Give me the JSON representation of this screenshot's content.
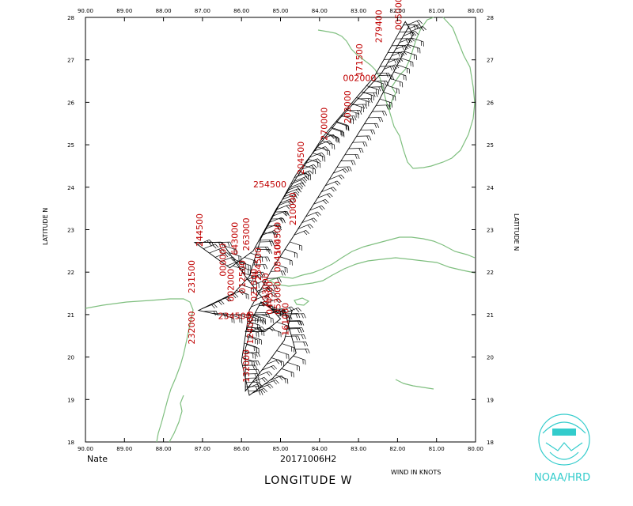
{
  "map": {
    "storm_name": "Nate",
    "date_label": "20171006H2",
    "x_axis_title": "LONGITUDE   W",
    "y_axis_title_left": "LATITUDE   N",
    "y_axis_title_right": "LATITUDE   N",
    "wind_units_label": "WIND IN KNOTS",
    "lon_range": [
      -90,
      -80
    ],
    "lat_range": [
      18,
      28
    ],
    "lon_ticks": [
      "90.00",
      "89.00",
      "88.00",
      "87.00",
      "86.00",
      "85.00",
      "84.00",
      "83.00",
      "82.00",
      "81.00",
      "80.00"
    ],
    "lat_ticks": [
      "18",
      "19",
      "20",
      "21",
      "22",
      "23",
      "24",
      "25",
      "26",
      "27",
      "28"
    ],
    "coast_color": "#7fbf7f",
    "track_color": "#000000",
    "label_color": "#c00000",
    "flight_track": [
      [
        -81.7,
        27.8
      ],
      [
        -82.4,
        26.7
      ],
      [
        -83.5,
        25.6
      ],
      [
        -84.6,
        24.3
      ],
      [
        -85.5,
        22.8
      ],
      [
        -85.8,
        21.9
      ],
      [
        -86.2,
        21.5
      ],
      [
        -87.1,
        21.1
      ],
      [
        -86.6,
        21.0
      ],
      [
        -85.4,
        21.0
      ],
      [
        -84.9,
        21.1
      ],
      [
        -84.6,
        20.1
      ],
      [
        -85.2,
        19.5
      ],
      [
        -85.8,
        19.1
      ],
      [
        -86.0,
        19.9
      ],
      [
        -85.8,
        21.1
      ],
      [
        -85.5,
        21.6
      ],
      [
        -85.2,
        22.1
      ],
      [
        -84.7,
        22.8
      ],
      [
        -83.6,
        24.4
      ],
      [
        -82.5,
        26.0
      ],
      [
        -81.6,
        27.6
      ],
      [
        -81.8,
        27.9
      ],
      [
        -82.6,
        26.6
      ],
      [
        -83.9,
        25.2
      ],
      [
        -85.1,
        23.5
      ],
      [
        -85.7,
        22.5
      ],
      [
        -86.3,
        22.1
      ],
      [
        -87.2,
        22.7
      ],
      [
        -86.5,
        22.7
      ],
      [
        -85.9,
        21.9
      ],
      [
        -85.3,
        21.2
      ],
      [
        -85.0,
        20.9
      ],
      [
        -85.4,
        20.6
      ],
      [
        -85.9,
        20.6
      ],
      [
        -85.5,
        21.3
      ],
      [
        -85.0,
        21.0
      ],
      [
        -84.7,
        21.1
      ],
      [
        -84.9,
        20.4
      ],
      [
        -85.3,
        19.9
      ],
      [
        -85.9,
        19.2
      ],
      [
        -85.9,
        20.2
      ],
      [
        -85.7,
        20.8
      ]
    ],
    "obs_labels": [
      {
        "text": "244500",
        "lon": -87.0,
        "lat": 22.6,
        "rot": -90
      },
      {
        "text": "231500",
        "lon": -87.2,
        "lat": 21.5,
        "rot": -90
      },
      {
        "text": "234500",
        "lon": -86.6,
        "lat": 20.9,
        "rot": 0
      },
      {
        "text": "232000",
        "lon": -87.2,
        "lat": 20.3,
        "rot": -90
      },
      {
        "text": "000000",
        "lon": -86.4,
        "lat": 21.9,
        "rot": -90
      },
      {
        "text": "643000",
        "lon": -86.1,
        "lat": 22.4,
        "rot": -90
      },
      {
        "text": "263000",
        "lon": -85.8,
        "lat": 22.5,
        "rot": -90
      },
      {
        "text": "254500",
        "lon": -85.5,
        "lat": 21.8,
        "rot": -90
      },
      {
        "text": "002000",
        "lon": -86.2,
        "lat": 21.3,
        "rot": -90
      },
      {
        "text": "012500",
        "lon": -85.9,
        "lat": 21.5,
        "rot": -90
      },
      {
        "text": "021500",
        "lon": -85.6,
        "lat": 21.3,
        "rot": -90
      },
      {
        "text": "033000",
        "lon": -85.3,
        "lat": 21.2,
        "rot": -90
      },
      {
        "text": "044500",
        "lon": -85.2,
        "lat": 21.0,
        "rot": -90
      },
      {
        "text": "053000",
        "lon": -85.0,
        "lat": 21.0,
        "rot": -90
      },
      {
        "text": "084500",
        "lon": -85.0,
        "lat": 22.0,
        "rot": -90
      },
      {
        "text": "104500",
        "lon": -85.0,
        "lat": 22.4,
        "rot": -90
      },
      {
        "text": "124000",
        "lon": -85.7,
        "lat": 20.3,
        "rot": -90
      },
      {
        "text": "132000",
        "lon": -85.8,
        "lat": 19.4,
        "rot": -90
      },
      {
        "text": "161000",
        "lon": -84.8,
        "lat": 20.5,
        "rot": -90
      },
      {
        "text": "210000",
        "lon": -84.6,
        "lat": 23.1,
        "rot": -90
      },
      {
        "text": "254500",
        "lon": -85.7,
        "lat": 24.0,
        "rot": 0
      },
      {
        "text": "204500",
        "lon": -84.4,
        "lat": 24.3,
        "rot": -90
      },
      {
        "text": "270000",
        "lon": -83.8,
        "lat": 25.1,
        "rot": -90
      },
      {
        "text": "203000",
        "lon": -83.2,
        "lat": 25.5,
        "rot": -90
      },
      {
        "text": "171500",
        "lon": -82.9,
        "lat": 26.6,
        "rot": -90
      },
      {
        "text": "002000",
        "lon": -83.4,
        "lat": 26.5,
        "rot": 0
      },
      {
        "text": "279400",
        "lon": -82.4,
        "lat": 27.4,
        "rot": -90
      },
      {
        "text": "005000",
        "lon": -81.9,
        "lat": 27.7,
        "rot": -90
      }
    ]
  }
}
